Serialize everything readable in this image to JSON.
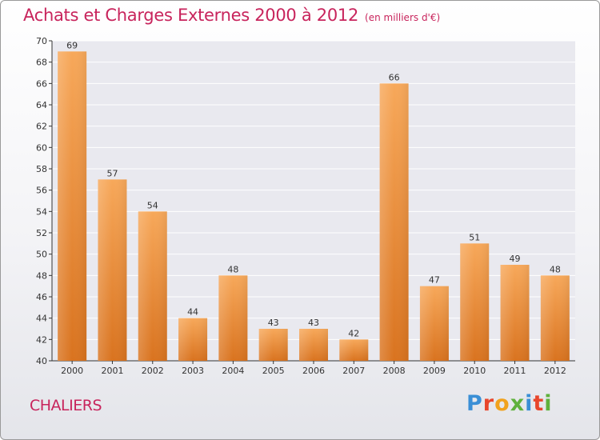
{
  "header": {
    "title": "Achats et Charges Externes 2000 à 2012",
    "unit": "(en milliers d'€)"
  },
  "footer": {
    "commune": "CHALIERS",
    "brand_letters": [
      "P",
      "r",
      "o",
      "x",
      "i",
      "t",
      "i"
    ]
  },
  "colors": {
    "title": "#c8245c",
    "bar_top": "#f7a85a",
    "bar_bottom": "#d9731f",
    "axis": "#333333",
    "grid": "#ffffff"
  },
  "chart_data": {
    "type": "bar",
    "title": "Achats et Charges Externes 2000 à 2012",
    "subtitle": "(en milliers d'€)",
    "categories": [
      "2000",
      "2001",
      "2002",
      "2003",
      "2004",
      "2005",
      "2006",
      "2007",
      "2008",
      "2009",
      "2010",
      "2011",
      "2012"
    ],
    "values": [
      69,
      57,
      54,
      44,
      48,
      43,
      43,
      42,
      66,
      47,
      51,
      49,
      48
    ],
    "ylim": [
      40,
      70
    ],
    "yticks": [
      40,
      42,
      44,
      46,
      48,
      50,
      52,
      54,
      56,
      58,
      60,
      62,
      64,
      66,
      68,
      70
    ],
    "xlabel": "",
    "ylabel": "",
    "grid": true
  }
}
